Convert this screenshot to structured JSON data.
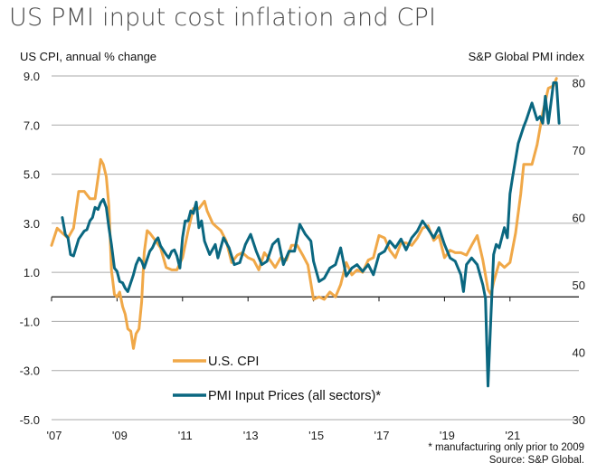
{
  "chart_data": {
    "type": "line",
    "title": "US PMI input cost inflation and CPI",
    "ylabel_left": "US CPI, annual % change",
    "ylabel_right": "S&P Global PMI index",
    "left_axis": {
      "ylim": [
        -5.0,
        9.0
      ],
      "ticks": [
        "9.0",
        "7.0",
        "5.0",
        "3.0",
        "1.0",
        "-1.0",
        "-3.0",
        "-5.0"
      ],
      "tick_values": [
        9,
        7,
        5,
        3,
        1,
        -1,
        -3,
        -5
      ]
    },
    "right_axis": {
      "ylim": [
        30,
        80
      ],
      "ticks": [
        "80",
        "70",
        "60",
        "50",
        "40",
        "30"
      ],
      "tick_values": [
        80,
        70,
        60,
        50,
        40,
        30
      ]
    },
    "x_ticks": [
      "'07",
      "'09",
      "'11",
      "'13",
      "'15",
      "'17",
      "'19",
      "'21"
    ],
    "x_tick_values": [
      2007,
      2009,
      2011,
      2013,
      2015,
      2017,
      2019,
      2021
    ],
    "xlim": [
      2007,
      2022.6
    ],
    "grid": true,
    "legend_position": "bottom-center",
    "series": [
      {
        "name": "U.S. CPI",
        "axis": "left",
        "color": "#F0A848",
        "x": [
          2007.0,
          2007.17,
          2007.33,
          2007.5,
          2007.67,
          2007.83,
          2008.0,
          2008.17,
          2008.33,
          2008.5,
          2008.58,
          2008.67,
          2008.75,
          2008.83,
          2008.92,
          2009.0,
          2009.08,
          2009.17,
          2009.25,
          2009.33,
          2009.42,
          2009.5,
          2009.58,
          2009.67,
          2009.75,
          2009.83,
          2009.92,
          2010.0,
          2010.17,
          2010.33,
          2010.5,
          2010.67,
          2010.83,
          2011.0,
          2011.17,
          2011.33,
          2011.5,
          2011.67,
          2011.75,
          2011.92,
          2012.0,
          2012.17,
          2012.33,
          2012.5,
          2012.67,
          2012.83,
          2013.0,
          2013.17,
          2013.33,
          2013.5,
          2013.67,
          2013.83,
          2014.0,
          2014.17,
          2014.33,
          2014.5,
          2014.67,
          2014.83,
          2015.0,
          2015.17,
          2015.33,
          2015.5,
          2015.67,
          2015.83,
          2016.0,
          2016.17,
          2016.33,
          2016.5,
          2016.67,
          2016.83,
          2017.0,
          2017.17,
          2017.33,
          2017.5,
          2017.67,
          2017.83,
          2018.0,
          2018.17,
          2018.33,
          2018.5,
          2018.67,
          2018.83,
          2019.0,
          2019.17,
          2019.33,
          2019.5,
          2019.67,
          2019.83,
          2020.0,
          2020.17,
          2020.33,
          2020.42,
          2020.5,
          2020.67,
          2020.83,
          2021.0,
          2021.17,
          2021.33,
          2021.42,
          2021.5,
          2021.67,
          2021.83,
          2022.0,
          2022.17,
          2022.33,
          2022.42
        ],
        "values": [
          2.1,
          2.8,
          2.6,
          2.4,
          2.8,
          4.3,
          4.3,
          4.0,
          4.0,
          5.6,
          5.4,
          4.9,
          3.7,
          1.1,
          0.1,
          0.0,
          0.2,
          -0.4,
          -0.7,
          -1.3,
          -1.4,
          -2.1,
          -1.5,
          -1.3,
          -0.2,
          1.8,
          2.7,
          2.6,
          2.3,
          2.0,
          1.2,
          1.1,
          1.1,
          1.6,
          2.7,
          3.6,
          3.6,
          3.9,
          3.5,
          3.0,
          2.9,
          2.7,
          2.3,
          1.4,
          1.7,
          1.8,
          1.6,
          1.5,
          1.1,
          1.8,
          1.5,
          1.2,
          1.6,
          1.5,
          2.1,
          2.1,
          1.7,
          1.3,
          -0.1,
          0.0,
          -0.1,
          0.2,
          0.0,
          0.5,
          1.4,
          0.9,
          1.1,
          1.0,
          1.5,
          1.6,
          2.5,
          2.4,
          1.9,
          1.6,
          2.2,
          2.2,
          2.1,
          2.4,
          2.8,
          2.9,
          2.3,
          2.5,
          1.6,
          1.9,
          1.8,
          1.8,
          1.7,
          2.1,
          2.5,
          1.5,
          0.3,
          0.1,
          0.6,
          1.4,
          1.2,
          1.4,
          2.6,
          4.2,
          5.4,
          5.4,
          5.4,
          6.2,
          7.5,
          8.5,
          8.6,
          8.9
        ]
      },
      {
        "name": "PMI Input Prices (all sectors)*",
        "axis": "right",
        "color": "#0A6780",
        "x": [
          2007.33,
          2007.42,
          2007.5,
          2007.58,
          2007.67,
          2007.83,
          2008.0,
          2008.08,
          2008.17,
          2008.25,
          2008.33,
          2008.42,
          2008.5,
          2008.58,
          2008.67,
          2008.75,
          2008.83,
          2008.92,
          2009.0,
          2009.08,
          2009.17,
          2009.25,
          2009.33,
          2009.5,
          2009.58,
          2009.67,
          2009.75,
          2009.83,
          2010.0,
          2010.08,
          2010.17,
          2010.25,
          2010.33,
          2010.5,
          2010.58,
          2010.67,
          2010.75,
          2010.83,
          2010.92,
          2011.0,
          2011.08,
          2011.17,
          2011.25,
          2011.33,
          2011.42,
          2011.5,
          2011.58,
          2011.67,
          2011.83,
          2012.0,
          2012.08,
          2012.25,
          2012.42,
          2012.58,
          2012.75,
          2012.92,
          2013.08,
          2013.25,
          2013.42,
          2013.58,
          2013.75,
          2013.92,
          2014.08,
          2014.25,
          2014.42,
          2014.58,
          2014.75,
          2014.92,
          2015.0,
          2015.17,
          2015.33,
          2015.5,
          2015.67,
          2015.83,
          2016.0,
          2016.17,
          2016.33,
          2016.5,
          2016.67,
          2016.83,
          2017.0,
          2017.17,
          2017.33,
          2017.5,
          2017.67,
          2017.83,
          2018.0,
          2018.17,
          2018.33,
          2018.5,
          2018.67,
          2018.83,
          2019.0,
          2019.17,
          2019.33,
          2019.5,
          2019.58,
          2019.67,
          2019.83,
          2020.0,
          2020.17,
          2020.25,
          2020.33,
          2020.42,
          2020.5,
          2020.58,
          2020.67,
          2020.83,
          2020.92,
          2021.0,
          2021.08,
          2021.25,
          2021.42,
          2021.5,
          2021.67,
          2021.83,
          2021.92,
          2022.0,
          2022.08,
          2022.17,
          2022.25,
          2022.33,
          2022.42,
          2022.5
        ],
        "values": [
          60.0,
          57.5,
          57.0,
          54.5,
          54.3,
          56.8,
          58.0,
          58.2,
          59.5,
          60.0,
          61.5,
          61.2,
          62.2,
          62.7,
          61.5,
          58.5,
          56.0,
          52.5,
          52.0,
          50.5,
          50.3,
          49.5,
          49.0,
          51.5,
          53.0,
          54.0,
          53.5,
          52.5,
          55.0,
          55.5,
          56.5,
          57.0,
          55.8,
          54.5,
          54.0,
          55.0,
          55.2,
          54.3,
          52.5,
          57.0,
          59.5,
          59.5,
          61.0,
          60.6,
          62.3,
          58.5,
          59.5,
          56.5,
          54.5,
          56.0,
          54.0,
          57.0,
          55.5,
          53.0,
          53.3,
          56.0,
          57.5,
          55.0,
          53.0,
          53.5,
          56.0,
          56.8,
          53.0,
          55.0,
          55.0,
          59.0,
          57.5,
          56.5,
          53.5,
          50.5,
          51.0,
          52.5,
          53.0,
          55.5,
          51.3,
          52.5,
          53.0,
          52.0,
          53.0,
          51.5,
          54.5,
          55.0,
          56.5,
          55.5,
          56.8,
          55.2,
          57.0,
          58.0,
          59.5,
          58.3,
          57.0,
          58.5,
          56.0,
          54.0,
          53.5,
          51.5,
          49.0,
          53.0,
          54.0,
          53.0,
          50.0,
          48.0,
          35.0,
          45.5,
          54.5,
          56.0,
          55.5,
          58.5,
          57.0,
          63.5,
          66.0,
          71.0,
          73.5,
          74.5,
          77.0,
          74.5,
          75.0,
          74.0,
          78.0,
          74.0,
          77.0,
          80.0,
          80.0,
          74.0
        ]
      }
    ],
    "legend": [
      {
        "label": "U.S. CPI"
      },
      {
        "label": "PMI Input Prices (all sectors)*"
      }
    ],
    "footnote": "* manufacturing only prior to 2009",
    "source": "Source: S&P Global."
  }
}
